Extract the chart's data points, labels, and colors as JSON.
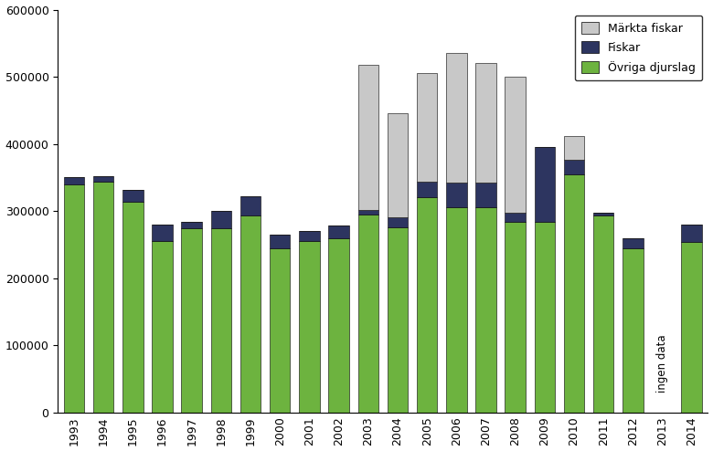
{
  "years": [
    1993,
    1994,
    1995,
    1996,
    1997,
    1998,
    1999,
    2000,
    2001,
    2002,
    2003,
    2004,
    2005,
    2006,
    2007,
    2008,
    2009,
    2010,
    2011,
    2012,
    2013,
    2014
  ],
  "ovriga": [
    340000,
    344000,
    314000,
    255000,
    274000,
    275000,
    294000,
    245000,
    255000,
    260000,
    295000,
    276000,
    320000,
    305000,
    305000,
    284000,
    284000,
    355000,
    294000,
    245000,
    0,
    254000
  ],
  "fiskar": [
    10000,
    8000,
    18000,
    25000,
    10000,
    25000,
    28000,
    20000,
    15000,
    18000,
    6000,
    15000,
    24000,
    38000,
    38000,
    14000,
    112000,
    22000,
    4000,
    14000,
    0,
    26000
  ],
  "markta": [
    0,
    0,
    0,
    0,
    0,
    0,
    0,
    0,
    0,
    0,
    217000,
    155000,
    162000,
    192000,
    177000,
    202000,
    0,
    35000,
    0,
    0,
    0,
    0
  ],
  "color_ovriga": "#6db33f",
  "color_fiskar": "#2d3560",
  "color_markta": "#c8c8c8",
  "ingen_data_year": 2013,
  "ylim": [
    0,
    600000
  ],
  "yticks": [
    0,
    100000,
    200000,
    300000,
    400000,
    500000,
    600000
  ],
  "legend_labels": [
    "Märkta fiskar",
    "Fiskar",
    "Övriga djurslag"
  ],
  "ingen_data_label": "ingen data"
}
